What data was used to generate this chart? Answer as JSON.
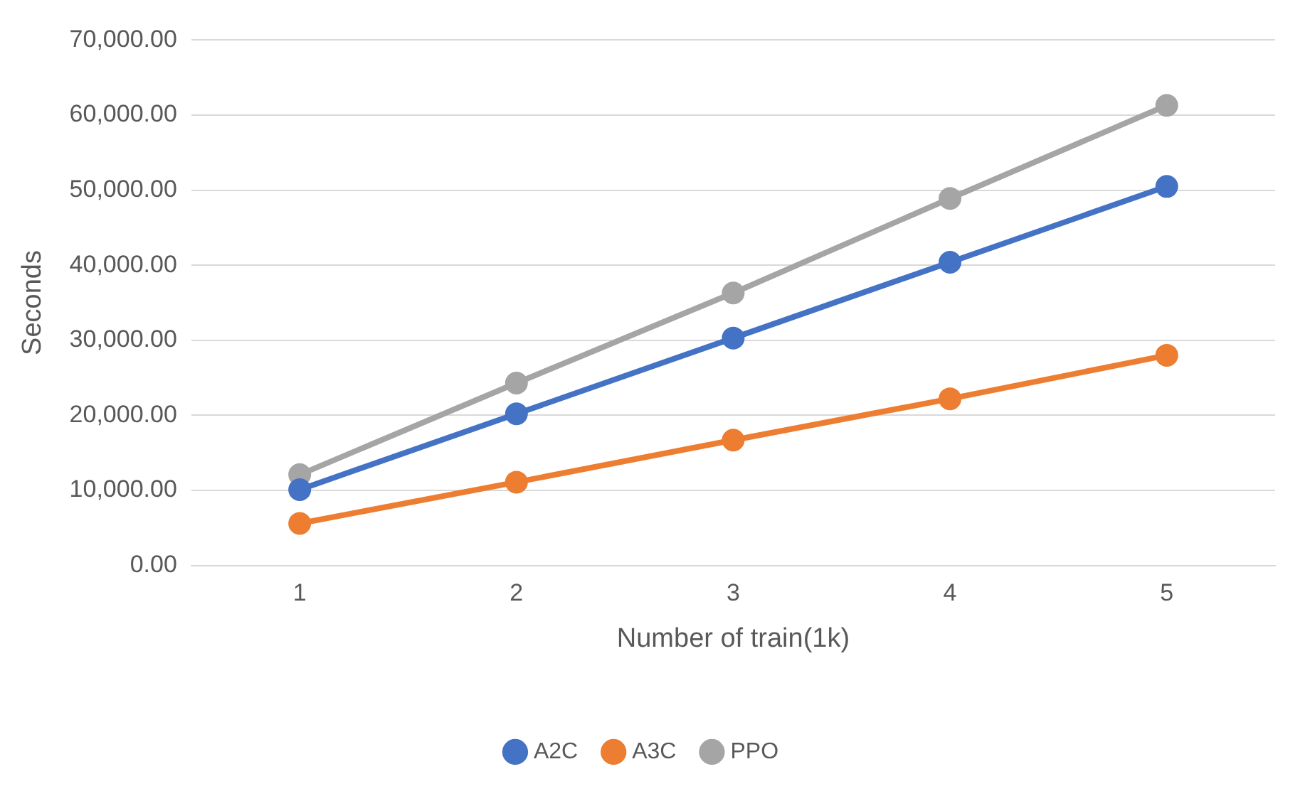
{
  "chart_data": {
    "type": "line",
    "xlabel": "Number of train(1k)",
    "ylabel": "Seconds",
    "categories": [
      "1",
      "2",
      "3",
      "4",
      "5"
    ],
    "series": [
      {
        "name": "A2C",
        "color": "#4472c4",
        "values": [
          10100,
          20200,
          30300,
          40400,
          50500
        ]
      },
      {
        "name": "A3C",
        "color": "#ed7d31",
        "values": [
          5600,
          11100,
          16700,
          22200,
          28000
        ]
      },
      {
        "name": "PPO",
        "color": "#a5a5a5",
        "values": [
          12100,
          24300,
          36300,
          48900,
          61300
        ]
      }
    ],
    "ylim": [
      0,
      70000
    ],
    "yticks": [
      {
        "value": 0,
        "label": "0.00"
      },
      {
        "value": 10000,
        "label": "10,000.00"
      },
      {
        "value": 20000,
        "label": "20,000.00"
      },
      {
        "value": 30000,
        "label": "30,000.00"
      },
      {
        "value": 40000,
        "label": "40,000.00"
      },
      {
        "value": 50000,
        "label": "50,000.00"
      },
      {
        "value": 60000,
        "label": "60,000.00"
      },
      {
        "value": 70000,
        "label": "70,000.00"
      }
    ],
    "grid": "y",
    "legend": "bottom",
    "marker": "circle",
    "line_style": "solid"
  }
}
